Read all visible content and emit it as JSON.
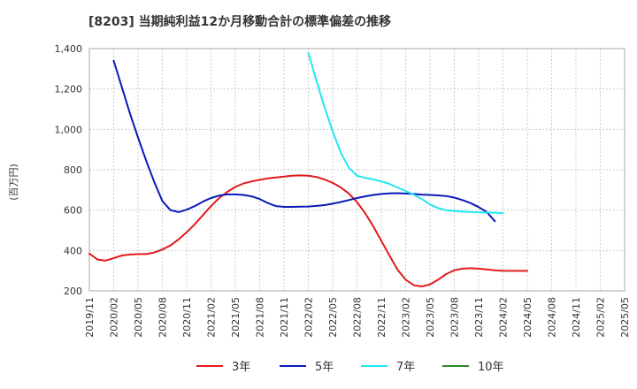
{
  "chart_data": {
    "type": "line",
    "title": "[8203]  当期純利益12か月移動合計の標準偏差の推移",
    "ylabel": "(百万円)",
    "xlabel": "",
    "ylim": [
      200,
      1400
    ],
    "yticks": [
      200,
      400,
      600,
      800,
      1000,
      1200,
      1400
    ],
    "ytick_labels": [
      "200",
      "400",
      "600",
      "800",
      "1,000",
      "1,200",
      "1,400"
    ],
    "xticks": [
      "2019/11",
      "2020/02",
      "2020/05",
      "2020/08",
      "2020/11",
      "2021/02",
      "2021/05",
      "2021/08",
      "2021/11",
      "2022/02",
      "2022/05",
      "2022/08",
      "2022/11",
      "2023/02",
      "2023/05",
      "2023/08",
      "2023/11",
      "2024/02",
      "2024/05",
      "2024/08",
      "2024/11",
      "2025/02",
      "2025/05"
    ],
    "x_start": "2019/11",
    "grid": true,
    "series": [
      {
        "name": "3年",
        "color": "#e31a1c",
        "start_month_index": 0,
        "values": [
          385,
          355,
          350,
          362,
          375,
          380,
          382,
          382,
          390,
          405,
          425,
          455,
          490,
          530,
          575,
          620,
          660,
          690,
          715,
          732,
          742,
          750,
          757,
          762,
          766,
          770,
          772,
          770,
          764,
          752,
          735,
          712,
          682,
          640,
          585,
          520,
          448,
          375,
          305,
          255,
          228,
          222,
          232,
          255,
          283,
          302,
          310,
          312,
          310,
          306,
          302,
          300,
          299,
          299,
          299
        ]
      },
      {
        "name": "5年",
        "color": "#0a1ab8",
        "start_month_index": 3,
        "values": [
          1340,
          1210,
          1080,
          960,
          845,
          740,
          645,
          600,
          590,
          602,
          620,
          642,
          660,
          672,
          678,
          678,
          675,
          668,
          655,
          635,
          620,
          616,
          616,
          617,
          618,
          621,
          625,
          632,
          640,
          650,
          660,
          668,
          675,
          680,
          683,
          684,
          682,
          680,
          677,
          675,
          673,
          670,
          662,
          650,
          635,
          615,
          590,
          545
        ]
      },
      {
        "name": "7年",
        "color": "#22e6f0",
        "start_month_index": 27,
        "values": [
          1380,
          1240,
          1110,
          990,
          885,
          810,
          770,
          760,
          752,
          742,
          730,
          712,
          695,
          677,
          655,
          628,
          610,
          600,
          596,
          593,
          590,
          589,
          588,
          587,
          585
        ]
      },
      {
        "name": "10年",
        "color": "#2a8a2a",
        "start_month_index": 0,
        "values": []
      }
    ],
    "legend": [
      {
        "label": "3年",
        "color": "#e31a1c"
      },
      {
        "label": "5年",
        "color": "#0a1ab8"
      },
      {
        "label": "7年",
        "color": "#22e6f0"
      },
      {
        "label": "10年",
        "color": "#2a8a2a"
      }
    ],
    "legend_position": "bottom"
  }
}
